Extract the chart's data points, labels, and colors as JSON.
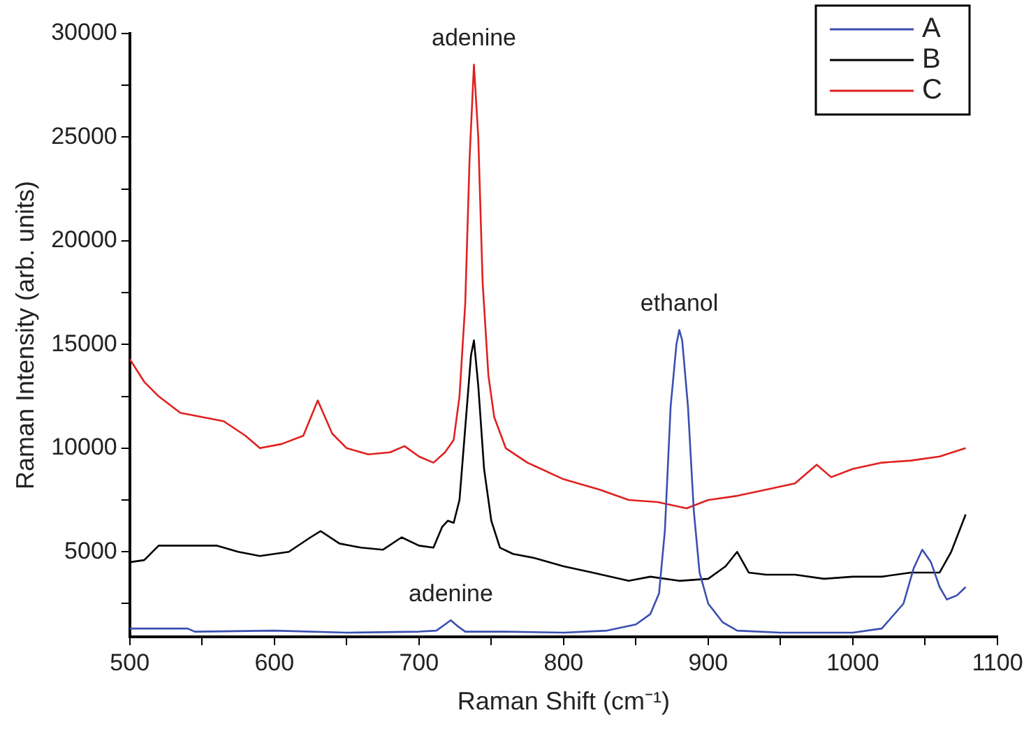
{
  "chart_data": {
    "type": "line",
    "xlabel": "Raman Shift (cm⁻¹)",
    "ylabel": "Raman Intensity (arb. units)",
    "xlim": [
      500,
      1100
    ],
    "xticks": [
      500,
      {
        "value": 550,
        "label": null
      },
      600,
      {
        "value": 650,
        "label": null
      },
      700,
      {
        "value": 750,
        "label": null
      },
      800,
      {
        "value": 850,
        "label": null
      },
      900,
      {
        "value": 950,
        "label": null
      },
      1000,
      {
        "value": 1050,
        "label": null
      },
      1100
    ],
    "ylim": [
      900,
      30000
    ],
    "yticks": [
      {
        "value": 2500,
        "label": null
      },
      5000,
      {
        "value": 7500,
        "label": null
      },
      10000,
      {
        "value": 12500,
        "label": null
      },
      15000,
      {
        "value": 17500,
        "label": null
      },
      20000,
      {
        "value": 22500,
        "label": null
      },
      25000,
      {
        "value": 27500,
        "label": null
      },
      30000
    ],
    "grid": false,
    "legend": "top right",
    "marker": "none",
    "line_style": "solid",
    "series": [
      {
        "name": "A",
        "color": "#3a4fb0",
        "x": [
          500,
          540,
          545,
          600,
          650,
          700,
          712,
          718,
          722,
          727,
          732,
          760,
          800,
          830,
          850,
          860,
          866,
          870,
          874,
          878,
          880,
          882,
          886,
          890,
          894,
          900,
          910,
          920,
          950,
          1000,
          1020,
          1035,
          1042,
          1048,
          1054,
          1060,
          1065,
          1072,
          1078
        ],
        "values": [
          1300,
          1300,
          1150,
          1200,
          1100,
          1150,
          1200,
          1500,
          1700,
          1400,
          1150,
          1150,
          1100,
          1200,
          1500,
          2000,
          3000,
          6000,
          12000,
          15000,
          15700,
          15200,
          12000,
          7000,
          4000,
          2500,
          1600,
          1200,
          1100,
          1100,
          1300,
          2500,
          4200,
          5100,
          4500,
          3300,
          2700,
          2900,
          3300
        ]
      },
      {
        "name": "B",
        "color": "#000000",
        "x": [
          500,
          510,
          520,
          540,
          560,
          575,
          590,
          610,
          625,
          632,
          645,
          660,
          675,
          688,
          700,
          710,
          716,
          720,
          724,
          728,
          732,
          736,
          738,
          741,
          745,
          750,
          756,
          765,
          780,
          800,
          820,
          845,
          860,
          880,
          900,
          912,
          920,
          928,
          940,
          960,
          980,
          1000,
          1020,
          1040,
          1060,
          1068,
          1078
        ],
        "values": [
          4500,
          4600,
          5300,
          5300,
          5300,
          5000,
          4800,
          5000,
          5700,
          6000,
          5400,
          5200,
          5100,
          5700,
          5300,
          5200,
          6200,
          6500,
          6400,
          7500,
          11000,
          14500,
          15200,
          13000,
          9000,
          6500,
          5200,
          4900,
          4700,
          4300,
          4000,
          3600,
          3800,
          3600,
          3700,
          4300,
          5000,
          4000,
          3900,
          3900,
          3700,
          3800,
          3800,
          4000,
          4000,
          5000,
          6800
        ]
      },
      {
        "name": "C",
        "color": "#e02020",
        "x": [
          500,
          510,
          520,
          535,
          550,
          565,
          580,
          590,
          605,
          620,
          630,
          640,
          650,
          665,
          680,
          690,
          700,
          710,
          718,
          724,
          728,
          732,
          735,
          738,
          741,
          744,
          748,
          752,
          760,
          775,
          800,
          825,
          845,
          865,
          885,
          900,
          920,
          940,
          960,
          975,
          985,
          1000,
          1020,
          1040,
          1060,
          1078
        ],
        "values": [
          14300,
          13200,
          12500,
          11700,
          11500,
          11300,
          10600,
          10000,
          10200,
          10600,
          12300,
          10700,
          10000,
          9700,
          9800,
          10100,
          9600,
          9300,
          9800,
          10400,
          12500,
          17000,
          24000,
          28500,
          25000,
          18000,
          13500,
          11500,
          10000,
          9300,
          8500,
          8000,
          7500,
          7400,
          7100,
          7500,
          7700,
          8000,
          8300,
          9200,
          8600,
          9000,
          9300,
          9400,
          9600,
          10000
        ]
      }
    ],
    "annotations": [
      {
        "text": "adenine",
        "x": 738,
        "y": 28500
      },
      {
        "text": "ethanol",
        "x": 880,
        "y": 15700
      },
      {
        "text": "adenine",
        "x": 722,
        "y": 1700
      }
    ]
  }
}
